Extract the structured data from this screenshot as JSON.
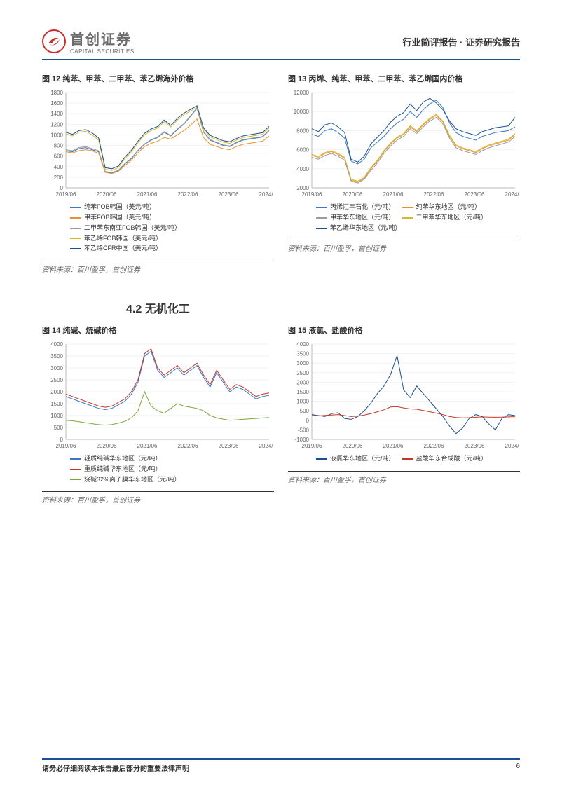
{
  "header": {
    "logo_cn": "首创证券",
    "logo_en": "CAPITAL SECURITIES",
    "right": "行业简评报告 · 证券研究报告"
  },
  "section_heading": "4.2 无机化工",
  "source_text": "资料来源：百川盈孚，首创证券",
  "footer": {
    "disclaimer": "请务必仔细阅读本报告最后部分的重要法律声明",
    "page": "6"
  },
  "palette": {
    "blue": "#3a78c4",
    "orange": "#e8902c",
    "gray": "#9a9a9a",
    "yellow": "#d4b82a",
    "navy": "#1a4f8f",
    "green": "#7aa838",
    "red": "#c0392b"
  },
  "charts": {
    "c12": {
      "title": "图 12 纯苯、甲苯、二甲苯、苯乙烯海外价格",
      "x_labels": [
        "2019/06",
        "2020/06",
        "2021/06",
        "2022/06",
        "2023/06",
        "2024/06"
      ],
      "ymin": 0,
      "ymax": 1800,
      "ystep": 200,
      "series": [
        {
          "label": "纯苯FOB韩国（美元/吨）",
          "color": "#3a78c4",
          "data": [
            700,
            680,
            740,
            760,
            720,
            680,
            300,
            280,
            320,
            450,
            550,
            700,
            820,
            900,
            950,
            1050,
            980,
            1100,
            1200,
            1350,
            1500,
            1050,
            900,
            850,
            800,
            780,
            850,
            900,
            920,
            940,
            960,
            1080
          ]
        },
        {
          "label": "甲苯FOB韩国（美元/吨）",
          "color": "#e8902c",
          "data": [
            680,
            660,
            700,
            720,
            700,
            650,
            290,
            270,
            310,
            420,
            520,
            660,
            780,
            840,
            880,
            950,
            920,
            1000,
            1080,
            1180,
            1300,
            950,
            820,
            780,
            740,
            720,
            780,
            820,
            840,
            860,
            880,
            980
          ]
        },
        {
          "label": "二甲苯东南亚FOB韩国（美元/吨）",
          "color": "#9a9a9a",
          "data": [
            720,
            700,
            760,
            780,
            740,
            700,
            310,
            290,
            330,
            460,
            560,
            710,
            830,
            910,
            960,
            1060,
            990,
            1110,
            1210,
            1360,
            1510,
            1060,
            910,
            860,
            810,
            790,
            860,
            910,
            930,
            950,
            970,
            1090
          ]
        },
        {
          "label": "苯乙烯FOB韩国（美元/吨）",
          "color": "#d4b82a",
          "data": [
            1020,
            980,
            1050,
            1070,
            1000,
            900,
            350,
            330,
            380,
            550,
            680,
            850,
            1000,
            1080,
            1130,
            1250,
            1150,
            1280,
            1380,
            1450,
            1520,
            1100,
            960,
            910,
            860,
            840,
            900,
            950,
            970,
            990,
            1010,
            1130
          ]
        },
        {
          "label": "苯乙烯CFR中国（美元/吨）",
          "color": "#1a4f8f",
          "data": [
            1050,
            1010,
            1080,
            1100,
            1040,
            940,
            380,
            360,
            410,
            580,
            710,
            880,
            1030,
            1110,
            1160,
            1280,
            1180,
            1310,
            1410,
            1480,
            1550,
            1130,
            990,
            940,
            890,
            870,
            930,
            980,
            1000,
            1020,
            1040,
            1160
          ]
        }
      ]
    },
    "c13": {
      "title": "图 13 丙烯、纯苯、甲苯、二甲苯、苯乙烯国内价格",
      "x_labels": [
        "2019/06",
        "2020/06",
        "2021/06",
        "2022/06",
        "2023/06",
        "2024/06"
      ],
      "ymin": 2000,
      "ymax": 12000,
      "ystep": 2000,
      "series": [
        {
          "label": "丙烯汇丰石化（元/吨）",
          "color": "#3a78c4",
          "data": [
            7600,
            7400,
            8000,
            8200,
            7800,
            7200,
            4800,
            4500,
            5000,
            6200,
            6800,
            7400,
            8200,
            8800,
            9200,
            10000,
            9400,
            10200,
            10800,
            11200,
            10400,
            8800,
            7800,
            7400,
            7200,
            7000,
            7400,
            7600,
            7800,
            7900,
            8000,
            8400
          ]
        },
        {
          "label": "纯苯华东地区（元/吨）",
          "color": "#e8902c",
          "data": [
            5400,
            5200,
            5600,
            5800,
            5500,
            5100,
            2800,
            2600,
            3000,
            4000,
            4800,
            5800,
            6600,
            7200,
            7600,
            8400,
            7900,
            8600,
            9200,
            9600,
            8900,
            7400,
            6400,
            6100,
            5900,
            5700,
            6100,
            6400,
            6600,
            6800,
            7000,
            7600
          ]
        },
        {
          "label": "甲苯华东地区（元/吨）",
          "color": "#9a9a9a",
          "data": [
            5200,
            5000,
            5400,
            5600,
            5300,
            4900,
            2700,
            2500,
            2900,
            3800,
            4600,
            5600,
            6400,
            7000,
            7400,
            8200,
            7700,
            8400,
            9000,
            9400,
            8700,
            7200,
            6200,
            5900,
            5700,
            5500,
            5900,
            6200,
            6400,
            6600,
            6800,
            7400
          ]
        },
        {
          "label": "二甲苯华东地区（元/吨）",
          "color": "#d4b82a",
          "data": [
            5500,
            5300,
            5700,
            5900,
            5600,
            5200,
            2900,
            2700,
            3100,
            4100,
            4900,
            5900,
            6700,
            7300,
            7700,
            8500,
            8000,
            8700,
            9300,
            9700,
            9000,
            7500,
            6500,
            6200,
            6000,
            5800,
            6200,
            6500,
            6700,
            6900,
            7100,
            7700
          ]
        },
        {
          "label": "苯乙烯华东地区（元/吨）",
          "color": "#1a4f8f",
          "data": [
            8200,
            7900,
            8600,
            8800,
            8400,
            7800,
            5000,
            4700,
            5300,
            6600,
            7300,
            8000,
            8900,
            9500,
            9900,
            10800,
            10100,
            11000,
            11400,
            10900,
            10200,
            9000,
            8200,
            7900,
            7700,
            7500,
            7900,
            8100,
            8300,
            8400,
            8500,
            9400
          ]
        }
      ]
    },
    "c14": {
      "title": "图 14 纯碱、烧碱价格",
      "x_labels": [
        "2019/06",
        "2020/06",
        "2021/06",
        "2022/06",
        "2023/06",
        "2024/06"
      ],
      "ymin": 0,
      "ymax": 4000,
      "ystep": 500,
      "series": [
        {
          "label": "轻质纯碱华东地区（元/吨）",
          "color": "#3a78c4",
          "data": [
            1800,
            1700,
            1600,
            1500,
            1400,
            1300,
            1250,
            1300,
            1450,
            1600,
            1900,
            2400,
            3500,
            3700,
            2900,
            2600,
            2800,
            3000,
            2700,
            2900,
            3100,
            2600,
            2200,
            2800,
            2400,
            2000,
            2200,
            2100,
            1900,
            1700,
            1800,
            1850
          ]
        },
        {
          "label": "重质纯碱华东地区（元/吨）",
          "color": "#c0392b",
          "data": [
            1900,
            1800,
            1700,
            1600,
            1500,
            1400,
            1350,
            1400,
            1550,
            1700,
            2000,
            2500,
            3600,
            3800,
            3000,
            2700,
            2900,
            3100,
            2800,
            3000,
            3200,
            2700,
            2300,
            2900,
            2500,
            2100,
            2300,
            2200,
            2000,
            1800,
            1900,
            1950
          ]
        },
        {
          "label": "烧碱32%离子膜华东地区（元/吨）",
          "color": "#7aa838",
          "data": [
            800,
            780,
            740,
            700,
            660,
            620,
            600,
            620,
            680,
            760,
            900,
            1200,
            2000,
            1400,
            1200,
            1100,
            1300,
            1500,
            1400,
            1350,
            1300,
            1200,
            1000,
            900,
            850,
            800,
            820,
            840,
            860,
            880,
            900,
            920
          ]
        }
      ]
    },
    "c15": {
      "title": "图 15 液氯、盐酸价格",
      "x_labels": [
        "2019/06",
        "2020/06",
        "2021/06",
        "2022/06",
        "2023/06",
        "2024/06"
      ],
      "ymin": -1000,
      "ymax": 4000,
      "ystep": 500,
      "series": [
        {
          "label": "液氯华东地区（元/吨）",
          "color": "#1a4f8f",
          "data": [
            300,
            250,
            200,
            350,
            400,
            100,
            50,
            200,
            500,
            900,
            1400,
            1800,
            2400,
            3400,
            1600,
            1200,
            1800,
            1400,
            1000,
            600,
            200,
            -300,
            -700,
            -400,
            100,
            300,
            200,
            -200,
            -500,
            100,
            300,
            250
          ]
        },
        {
          "label": "盐酸华东合成酸（元/吨）",
          "color": "#c0392b",
          "data": [
            250,
            230,
            260,
            280,
            300,
            250,
            200,
            220,
            280,
            350,
            450,
            550,
            700,
            720,
            650,
            600,
            580,
            520,
            450,
            380,
            300,
            200,
            150,
            130,
            140,
            160,
            180,
            170,
            160,
            170,
            180,
            190
          ]
        }
      ]
    }
  }
}
